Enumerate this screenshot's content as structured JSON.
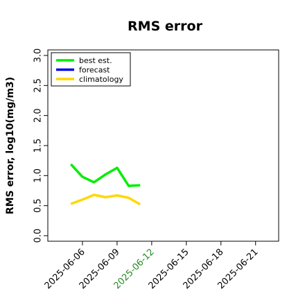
{
  "chart_data": {
    "type": "line",
    "title": "RMS error",
    "ylabel": "RMS error, log10(mg/m3)",
    "xlabel": "",
    "ylim": [
      0.0,
      3.0
    ],
    "yticks": [
      "0.0",
      "0.5",
      "1.0",
      "1.5",
      "2.0",
      "2.5",
      "3.0"
    ],
    "xlim": [
      "2025-06-03",
      "2025-06-23"
    ],
    "xticks": [
      {
        "date": "2025-06-06",
        "label": "2025-06-06",
        "color": "#000000"
      },
      {
        "date": "2025-06-09",
        "label": "2025-06-09",
        "color": "#000000"
      },
      {
        "date": "2025-06-12",
        "label": "2025-06-12",
        "color": "#228B22"
      },
      {
        "date": "2025-06-15",
        "label": "2025-06-15",
        "color": "#000000"
      },
      {
        "date": "2025-06-18",
        "label": "2025-06-18",
        "color": "#000000"
      },
      {
        "date": "2025-06-21",
        "label": "2025-06-21",
        "color": "#000000"
      }
    ],
    "grid": false,
    "legend_position": "top-left",
    "series": [
      {
        "name": "best est.",
        "color": "#00ee00",
        "points": [
          {
            "x": "2025-06-05",
            "y": 1.19
          },
          {
            "x": "2025-06-06",
            "y": 0.98
          },
          {
            "x": "2025-06-07",
            "y": 0.89
          },
          {
            "x": "2025-06-08",
            "y": 1.02
          },
          {
            "x": "2025-06-09",
            "y": 1.13
          },
          {
            "x": "2025-06-10",
            "y": 0.83
          },
          {
            "x": "2025-06-11",
            "y": 0.84
          }
        ]
      },
      {
        "name": "forecast",
        "color": "#0000ee",
        "points": []
      },
      {
        "name": "climatology",
        "color": "#ffd700",
        "points": [
          {
            "x": "2025-06-05",
            "y": 0.53
          },
          {
            "x": "2025-06-06",
            "y": 0.6
          },
          {
            "x": "2025-06-07",
            "y": 0.68
          },
          {
            "x": "2025-06-08",
            "y": 0.64
          },
          {
            "x": "2025-06-09",
            "y": 0.67
          },
          {
            "x": "2025-06-10",
            "y": 0.63
          },
          {
            "x": "2025-06-11",
            "y": 0.52
          }
        ]
      }
    ]
  }
}
